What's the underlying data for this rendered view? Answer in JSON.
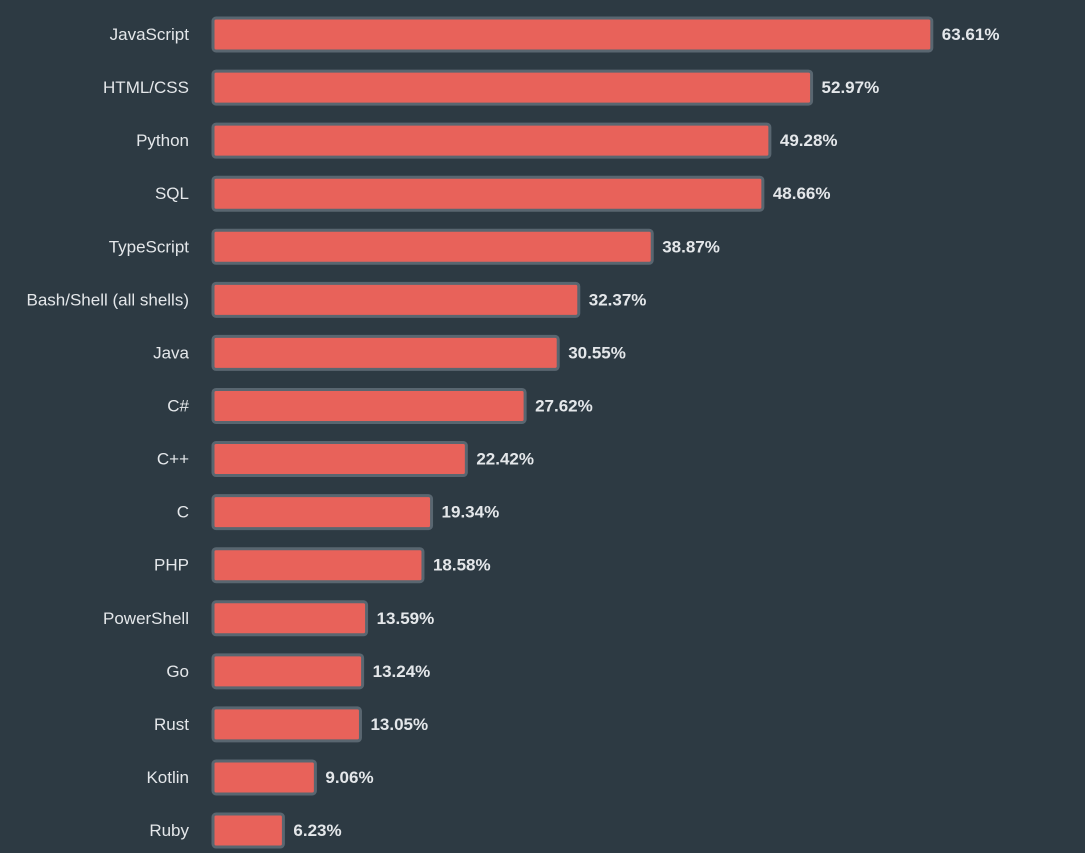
{
  "colors": {
    "background": "#2d3a43",
    "bar_fill": "#e8625a",
    "bar_border": "#596670",
    "text": "#e4e7ea"
  },
  "chart_data": {
    "type": "bar",
    "orientation": "horizontal",
    "title": "",
    "xlabel": "",
    "ylabel": "",
    "grid": false,
    "categories": [
      "JavaScript",
      "HTML/CSS",
      "Python",
      "SQL",
      "TypeScript",
      "Bash/Shell (all shells)",
      "Java",
      "C#",
      "C++",
      "C",
      "PHP",
      "PowerShell",
      "Go",
      "Rust",
      "Kotlin",
      "Ruby"
    ],
    "values": [
      63.61,
      52.97,
      49.28,
      48.66,
      38.87,
      32.37,
      30.55,
      27.62,
      22.42,
      19.34,
      18.58,
      13.59,
      13.24,
      13.05,
      9.06,
      6.23
    ],
    "value_labels": [
      "63.61%",
      "52.97%",
      "49.28%",
      "48.66%",
      "38.87%",
      "32.37%",
      "30.55%",
      "27.62%",
      "22.42%",
      "19.34%",
      "18.58%",
      "13.59%",
      "13.24%",
      "13.05%",
      "9.06%",
      "6.23%"
    ],
    "unit": "%"
  }
}
